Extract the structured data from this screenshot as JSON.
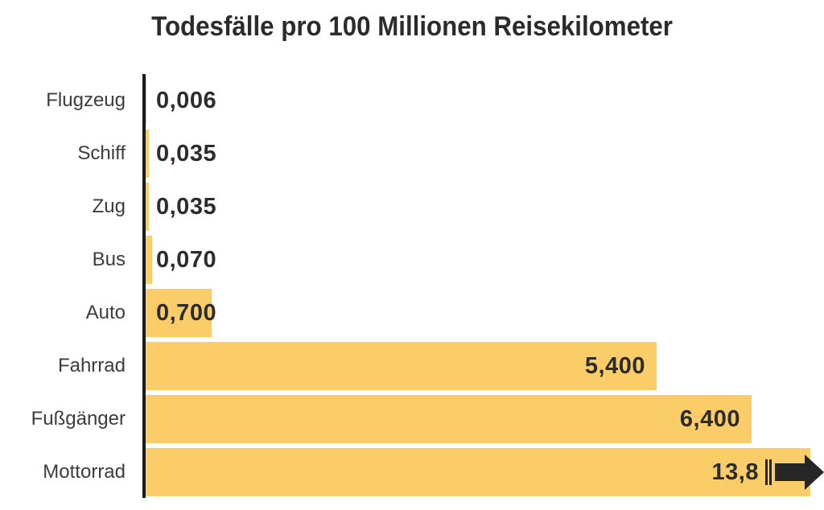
{
  "chart_data": {
    "type": "bar",
    "orientation": "horizontal",
    "title": "Todesfälle pro 100 Millionen Reisekilometer",
    "categories": [
      "Flugzeug",
      "Schiff",
      "Zug",
      "Bus",
      "Auto",
      "Fahrrad",
      "Fußgänger",
      "Mottorrad"
    ],
    "values": [
      0.006,
      0.035,
      0.035,
      0.07,
      0.7,
      5.4,
      6.4,
      13.8
    ],
    "value_labels": [
      "0,006",
      "0,035",
      "0,035",
      "0,070",
      "0,700",
      "5,400",
      "6,400",
      "13,8"
    ],
    "xlabel": "",
    "ylabel": "",
    "xlim": [
      0,
      7.17
    ],
    "grid": false,
    "legend": false,
    "last_bar_clipped": true,
    "overflow_indicator": "right-arrow",
    "colors": {
      "bar": "#facd69",
      "value_text": "#2c2c2c",
      "category_text": "#3c3c3c",
      "axis": "#1b1b1b",
      "arrow": "#262626",
      "title_text": "#2b2b2b",
      "background": "#ffffff"
    }
  }
}
